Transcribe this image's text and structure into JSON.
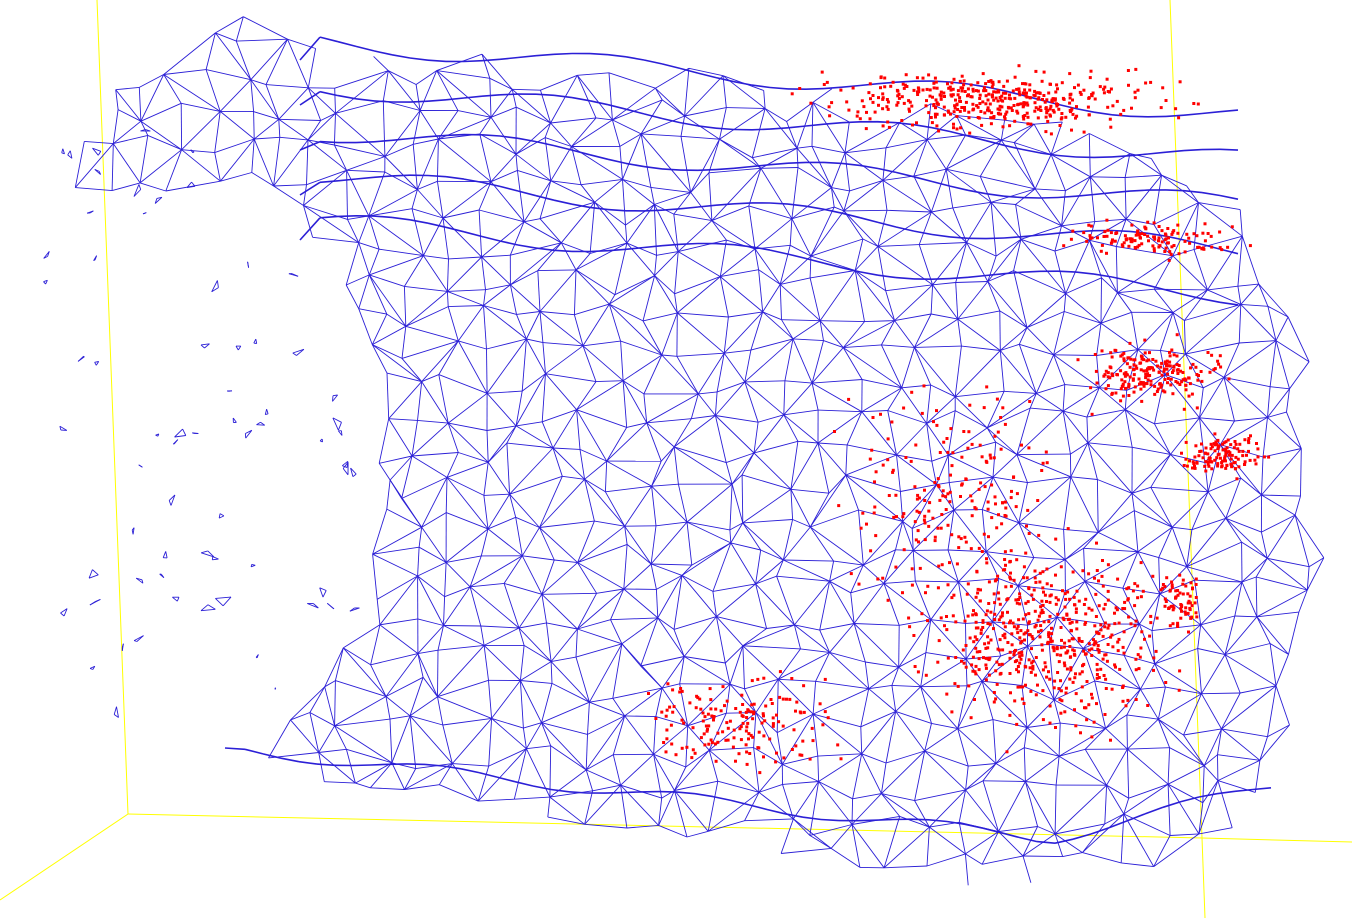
{
  "scene": {
    "background_color": "#ffffff",
    "bounding_box_color": "#ffff00",
    "mesh_color": "#2b1fd6",
    "point_color": "#ff0000",
    "mesh_style": "triangulated-wireframe",
    "points_style": "scattered-square-markers"
  }
}
